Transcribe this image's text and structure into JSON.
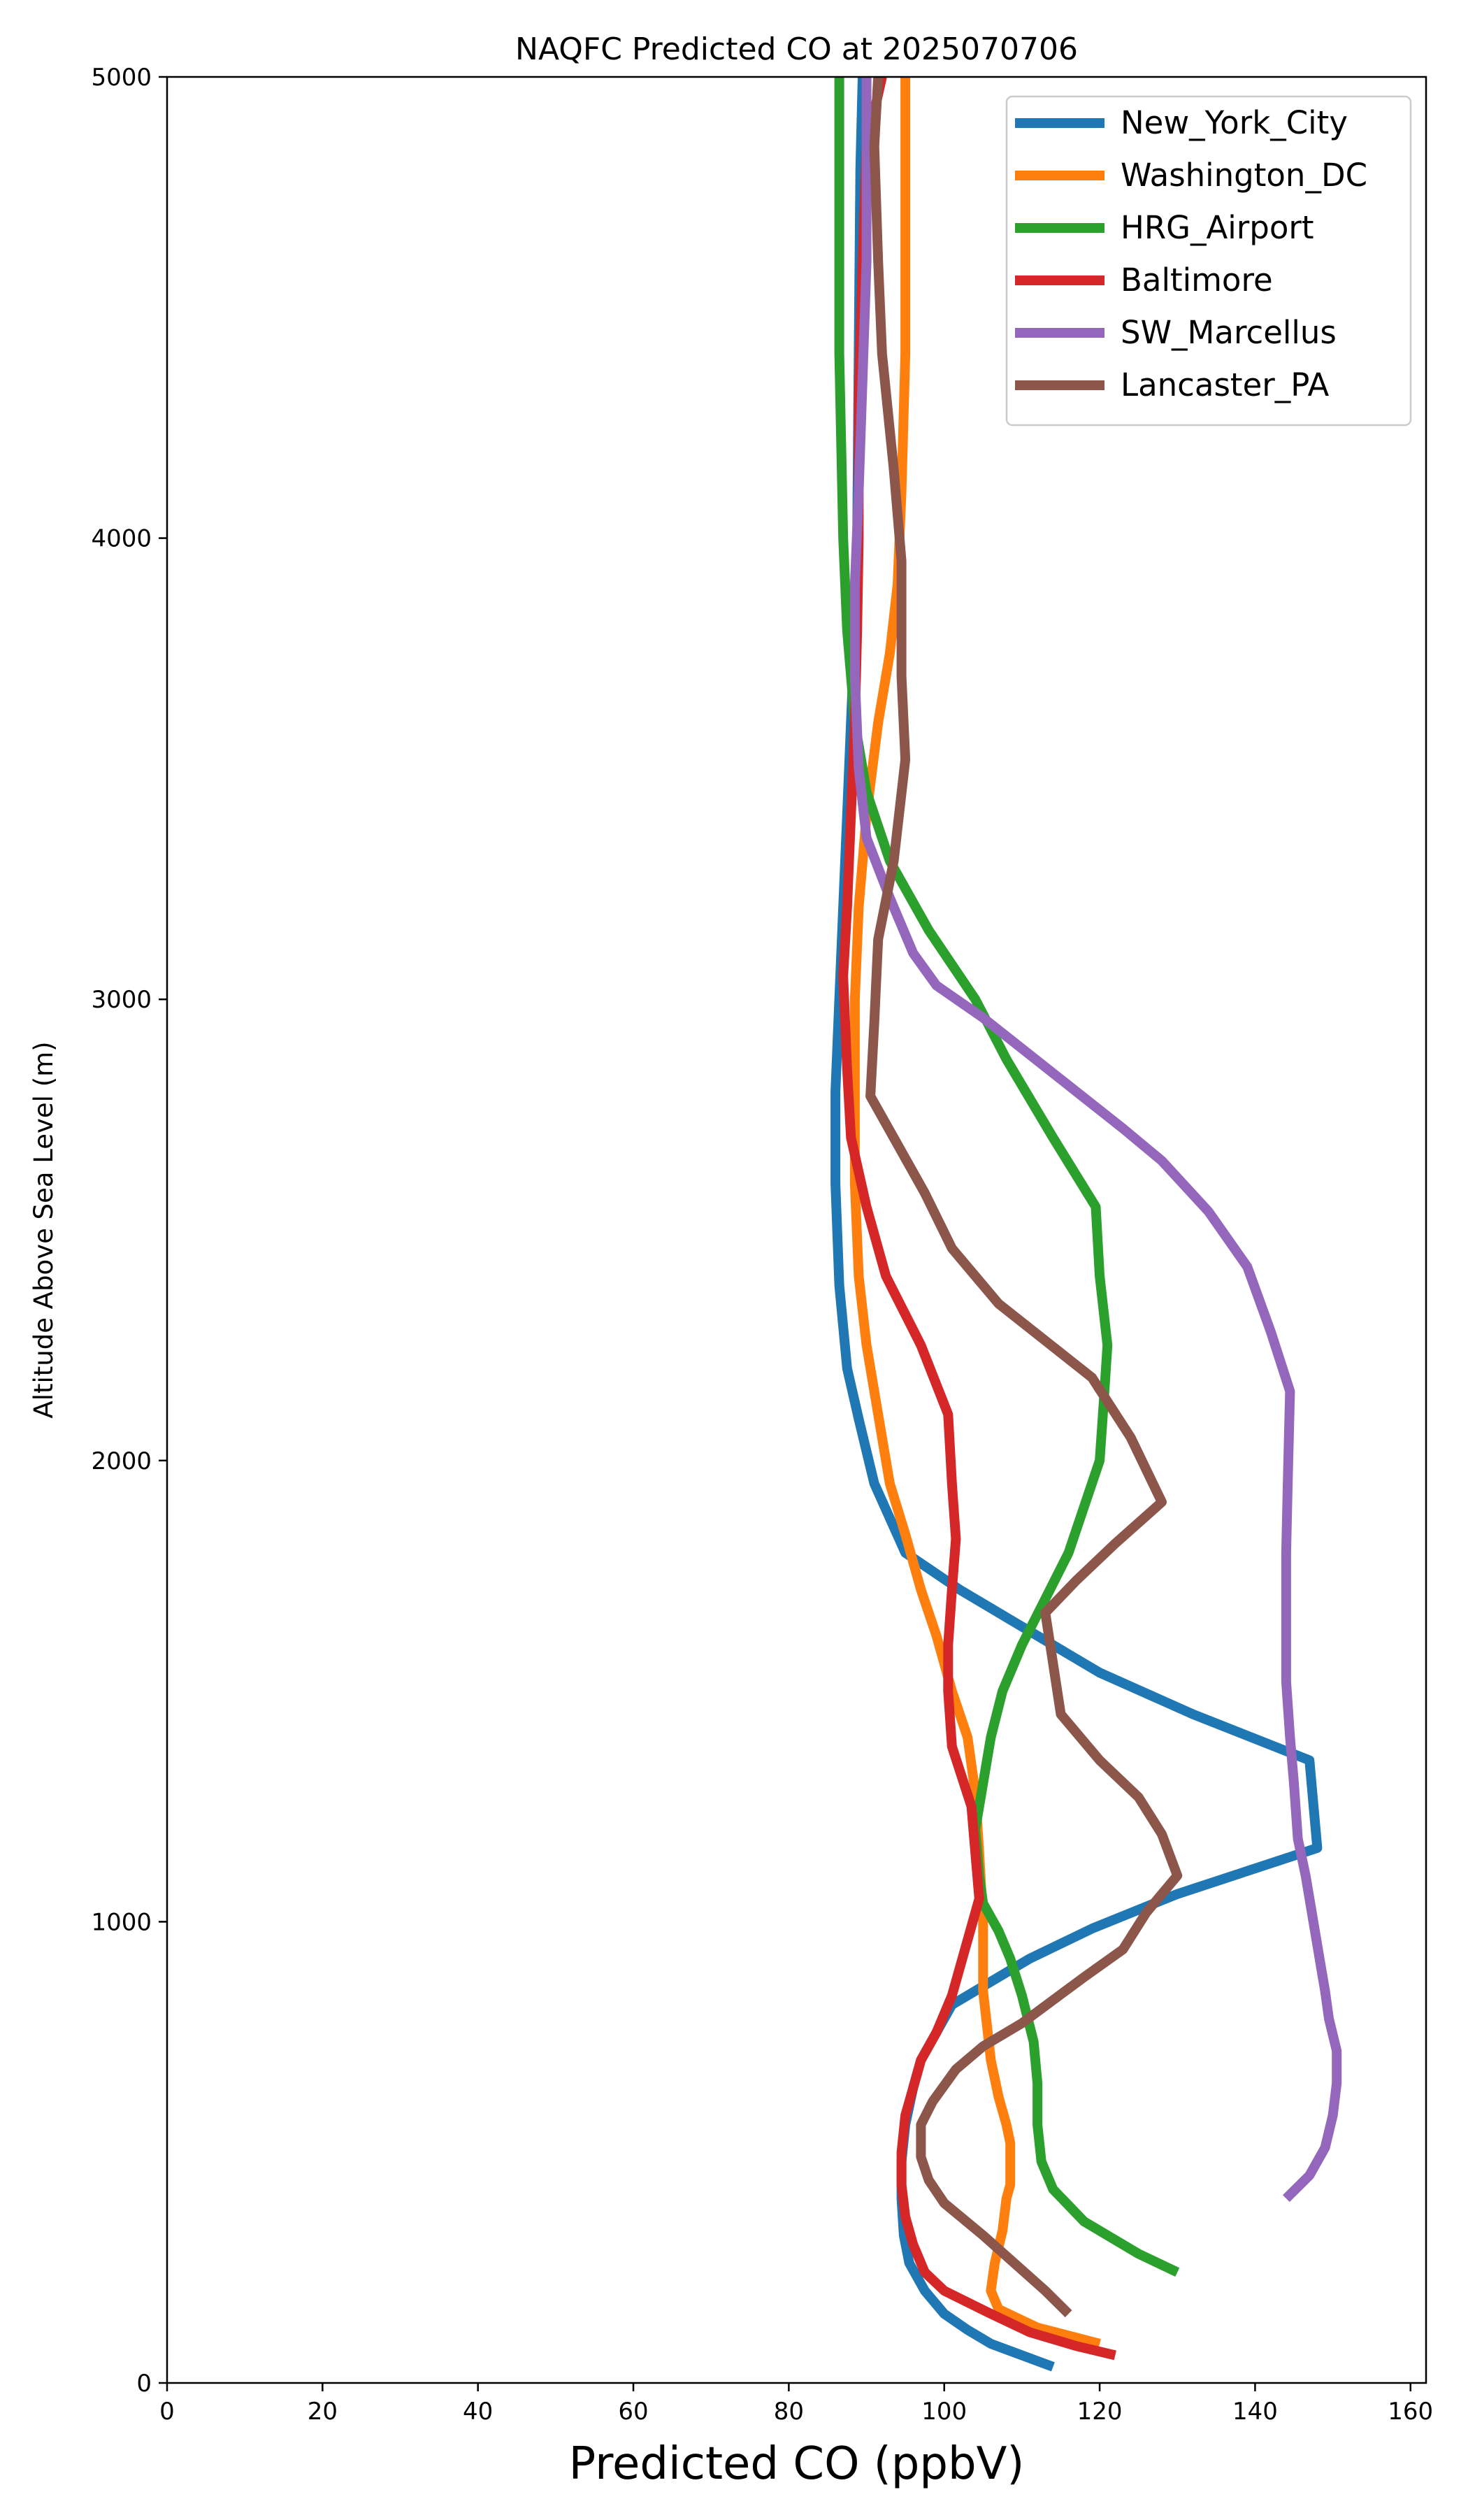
{
  "chart_data": {
    "type": "line",
    "title": "NAQFC Predicted CO at 2025070706",
    "xlabel": "Predicted CO (ppbV)",
    "ylabel": "Altitude Above Sea Level (m)",
    "xlim": [
      0,
      162
    ],
    "ylim": [
      0,
      5000
    ],
    "xticks": [
      0,
      20,
      40,
      60,
      80,
      100,
      120,
      140,
      160
    ],
    "yticks": [
      0,
      1000,
      2000,
      3000,
      4000,
      5000
    ],
    "grid": false,
    "legend": "top-right",
    "series": [
      {
        "name": "New_York_City",
        "color": "#1f77b4",
        "points": [
          [
            114,
            35
          ],
          [
            110,
            60
          ],
          [
            106,
            85
          ],
          [
            103,
            115
          ],
          [
            100,
            150
          ],
          [
            97.5,
            200
          ],
          [
            95.5,
            260
          ],
          [
            94.8,
            320
          ],
          [
            94.5,
            400
          ],
          [
            94.5,
            480
          ],
          [
            95,
            560
          ],
          [
            96,
            640
          ],
          [
            97,
            700
          ],
          [
            99,
            760
          ],
          [
            101,
            820
          ],
          [
            105,
            860
          ],
          [
            111,
            920
          ],
          [
            119,
            985
          ],
          [
            130,
            1060
          ],
          [
            148,
            1160
          ],
          [
            147,
            1350
          ],
          [
            132,
            1450
          ],
          [
            120,
            1540
          ],
          [
            110,
            1640
          ],
          [
            102,
            1720
          ],
          [
            95,
            1800
          ],
          [
            91,
            1950
          ],
          [
            89,
            2090
          ],
          [
            87.5,
            2200
          ],
          [
            86.5,
            2380
          ],
          [
            86,
            2600
          ],
          [
            86,
            2800
          ],
          [
            86.5,
            3000
          ],
          [
            87,
            3200
          ],
          [
            87.5,
            3400
          ],
          [
            88,
            3600
          ],
          [
            88.5,
            3800
          ],
          [
            88.8,
            4000
          ],
          [
            89,
            4400
          ],
          [
            89.2,
            4800
          ],
          [
            89.5,
            5000
          ]
        ]
      },
      {
        "name": "Washington_DC",
        "color": "#ff7f0e",
        "points": [
          [
            120,
            85
          ],
          [
            112,
            120
          ],
          [
            107,
            160
          ],
          [
            106,
            200
          ],
          [
            106.5,
            260
          ],
          [
            107.5,
            330
          ],
          [
            108,
            400
          ],
          [
            108.5,
            430
          ],
          [
            108.5,
            520
          ],
          [
            108,
            560
          ],
          [
            107,
            620
          ],
          [
            106,
            700
          ],
          [
            105,
            850
          ],
          [
            105,
            1000
          ],
          [
            104.5,
            1150
          ],
          [
            104,
            1280
          ],
          [
            103,
            1400
          ],
          [
            101,
            1500
          ],
          [
            99,
            1620
          ],
          [
            97,
            1720
          ],
          [
            95,
            1840
          ],
          [
            93,
            1950
          ],
          [
            91.5,
            2100
          ],
          [
            90,
            2250
          ],
          [
            89,
            2400
          ],
          [
            88.5,
            2600
          ],
          [
            88.5,
            2800
          ],
          [
            88.5,
            3000
          ],
          [
            89,
            3200
          ],
          [
            90,
            3400
          ],
          [
            91.5,
            3600
          ],
          [
            93,
            3750
          ],
          [
            94,
            3900
          ],
          [
            94.5,
            4100
          ],
          [
            95,
            4400
          ],
          [
            95,
            4800
          ],
          [
            95,
            5000
          ]
        ]
      },
      {
        "name": "HRG_Airport",
        "color": "#2ca02c",
        "points": [
          [
            130,
            240
          ],
          [
            125,
            280
          ],
          [
            118,
            350
          ],
          [
            114,
            420
          ],
          [
            112.5,
            480
          ],
          [
            112,
            560
          ],
          [
            112,
            650
          ],
          [
            111.5,
            740
          ],
          [
            110,
            840
          ],
          [
            108.5,
            920
          ],
          [
            107,
            980
          ],
          [
            105,
            1040
          ],
          [
            104.5,
            1100
          ],
          [
            104,
            1200
          ],
          [
            105,
            1300
          ],
          [
            106,
            1400
          ],
          [
            107.5,
            1500
          ],
          [
            110,
            1600
          ],
          [
            113,
            1700
          ],
          [
            116,
            1800
          ],
          [
            118,
            1900
          ],
          [
            120,
            2000
          ],
          [
            120.5,
            2120
          ],
          [
            121,
            2250
          ],
          [
            120,
            2400
          ],
          [
            119.5,
            2550
          ],
          [
            114,
            2700
          ],
          [
            108,
            2870
          ],
          [
            104,
            3000
          ],
          [
            98,
            3150
          ],
          [
            93,
            3300
          ],
          [
            90,
            3450
          ],
          [
            88.5,
            3600
          ],
          [
            87.5,
            3800
          ],
          [
            87,
            4000
          ],
          [
            86.5,
            4400
          ],
          [
            86.5,
            4800
          ],
          [
            86.5,
            5000
          ]
        ]
      },
      {
        "name": "Baltimore",
        "color": "#d62728",
        "points": [
          [
            122,
            60
          ],
          [
            117,
            80
          ],
          [
            111,
            110
          ],
          [
            106,
            150
          ],
          [
            100,
            200
          ],
          [
            97.5,
            240
          ],
          [
            96,
            300
          ],
          [
            95,
            360
          ],
          [
            94.5,
            430
          ],
          [
            94.5,
            500
          ],
          [
            95,
            580
          ],
          [
            96,
            640
          ],
          [
            97,
            700
          ],
          [
            99,
            760
          ],
          [
            101,
            840
          ],
          [
            103,
            960
          ],
          [
            104.5,
            1050
          ],
          [
            104,
            1150
          ],
          [
            103.5,
            1250
          ],
          [
            101,
            1380
          ],
          [
            100.5,
            1500
          ],
          [
            100.5,
            1600
          ],
          [
            101,
            1720
          ],
          [
            101.5,
            1830
          ],
          [
            101,
            1950
          ],
          [
            100.5,
            2100
          ],
          [
            97,
            2250
          ],
          [
            92.5,
            2400
          ],
          [
            90,
            2550
          ],
          [
            88,
            2700
          ],
          [
            87.5,
            2850
          ],
          [
            87,
            3050
          ],
          [
            87.5,
            3200
          ],
          [
            88,
            3400
          ],
          [
            88.5,
            3600
          ],
          [
            88.8,
            3800
          ],
          [
            89,
            4000
          ],
          [
            89,
            4300
          ],
          [
            89.5,
            4600
          ],
          [
            90,
            4850
          ],
          [
            92,
            5000
          ]
        ]
      },
      {
        "name": "SW_Marcellus",
        "color": "#9467bd",
        "points": [
          [
            144,
            400
          ],
          [
            147,
            450
          ],
          [
            149,
            510
          ],
          [
            150,
            580
          ],
          [
            150.5,
            650
          ],
          [
            150.5,
            720
          ],
          [
            149.5,
            790
          ],
          [
            149,
            850
          ],
          [
            148.5,
            900
          ],
          [
            147.5,
            1000
          ],
          [
            146.5,
            1100
          ],
          [
            145.5,
            1180
          ],
          [
            145,
            1300
          ],
          [
            144.5,
            1400
          ],
          [
            144,
            1520
          ],
          [
            144,
            1650
          ],
          [
            144,
            1800
          ],
          [
            144.2,
            1950
          ],
          [
            144.5,
            2150
          ],
          [
            142,
            2280
          ],
          [
            139,
            2420
          ],
          [
            134,
            2540
          ],
          [
            128,
            2650
          ],
          [
            123,
            2720
          ],
          [
            117,
            2800
          ],
          [
            111,
            2880
          ],
          [
            105,
            2960
          ],
          [
            99,
            3030
          ],
          [
            96,
            3100
          ],
          [
            93,
            3220
          ],
          [
            90,
            3350
          ],
          [
            89,
            3500
          ],
          [
            88.5,
            3700
          ],
          [
            88.5,
            3900
          ],
          [
            89,
            4100
          ],
          [
            89.5,
            4350
          ],
          [
            90,
            4600
          ],
          [
            90,
            4800
          ],
          [
            90,
            5000
          ]
        ]
      },
      {
        "name": "Lancaster_PA",
        "color": "#8c564b",
        "points": [
          [
            116,
            150
          ],
          [
            113,
            200
          ],
          [
            109,
            260
          ],
          [
            105,
            320
          ],
          [
            100,
            390
          ],
          [
            98,
            440
          ],
          [
            97,
            490
          ],
          [
            97,
            560
          ],
          [
            98.5,
            610
          ],
          [
            101.5,
            680
          ],
          [
            105,
            730
          ],
          [
            110,
            780
          ],
          [
            114,
            830
          ],
          [
            118,
            880
          ],
          [
            123,
            940
          ],
          [
            126,
            1020
          ],
          [
            130,
            1100
          ],
          [
            128,
            1190
          ],
          [
            125,
            1270
          ],
          [
            120,
            1350
          ],
          [
            115,
            1450
          ],
          [
            114,
            1560
          ],
          [
            113,
            1670
          ],
          [
            117,
            1740
          ],
          [
            122,
            1820
          ],
          [
            128,
            1910
          ],
          [
            124,
            2050
          ],
          [
            119,
            2180
          ],
          [
            107,
            2340
          ],
          [
            101,
            2460
          ],
          [
            97.5,
            2580
          ],
          [
            93.5,
            2700
          ],
          [
            90.5,
            2790
          ],
          [
            91,
            2950
          ],
          [
            91.5,
            3130
          ],
          [
            93.5,
            3300
          ],
          [
            95,
            3520
          ],
          [
            94.5,
            3700
          ],
          [
            94.5,
            3950
          ],
          [
            93.5,
            4150
          ],
          [
            92,
            4400
          ],
          [
            91.5,
            4600
          ],
          [
            91,
            4850
          ],
          [
            91.5,
            5000
          ]
        ]
      }
    ]
  }
}
